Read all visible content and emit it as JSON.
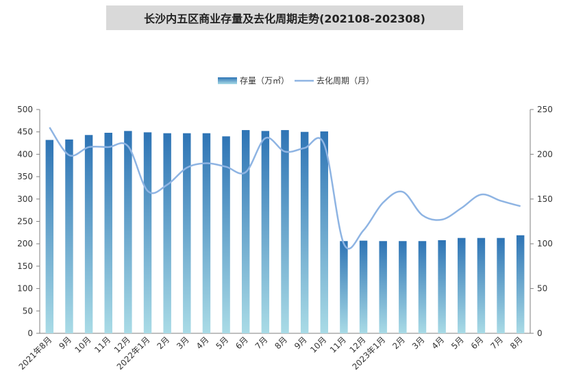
{
  "chart_data": {
    "type": "bar",
    "title": "长沙内五区商业存量及去化周期走势(202108-202308)",
    "categories": [
      "2021年8月",
      "9月",
      "10月",
      "11月",
      "12月",
      "2022年1月",
      "2月",
      "3月",
      "4月",
      "5月",
      "6月",
      "7月",
      "8月",
      "9月",
      "10月",
      "11月",
      "12月",
      "2023年1月",
      "2月",
      "3月",
      "4月",
      "5月",
      "6月",
      "7月",
      "8月"
    ],
    "series": [
      {
        "name": "存量（万㎡）",
        "type": "bar",
        "axis": "left",
        "values": [
          432,
          433,
          443,
          448,
          452,
          449,
          447,
          447,
          447,
          440,
          454,
          452,
          454,
          450,
          451,
          206,
          207,
          206,
          206,
          206,
          208,
          213,
          213,
          213,
          219
        ]
      },
      {
        "name": "去化周期（月）",
        "type": "line",
        "axis": "right",
        "values": [
          230,
          199,
          208,
          208,
          209,
          159,
          166,
          185,
          190,
          186,
          180,
          218,
          203,
          207,
          211,
          100,
          115,
          146,
          158,
          132,
          127,
          140,
          155,
          148,
          142
        ]
      }
    ],
    "ylim_left": [
      0,
      500
    ],
    "ylim_right": [
      0,
      250
    ],
    "yticks_left": [
      0,
      50,
      100,
      150,
      200,
      250,
      300,
      350,
      400,
      450,
      500
    ],
    "yticks_right": [
      0,
      50,
      100,
      150,
      200,
      250
    ],
    "legend_position": "top-center",
    "grid": false,
    "colors": {
      "bar_top": "#2e74b5",
      "bar_bottom": "#a9dbe6",
      "line": "#8eb4e3"
    }
  }
}
